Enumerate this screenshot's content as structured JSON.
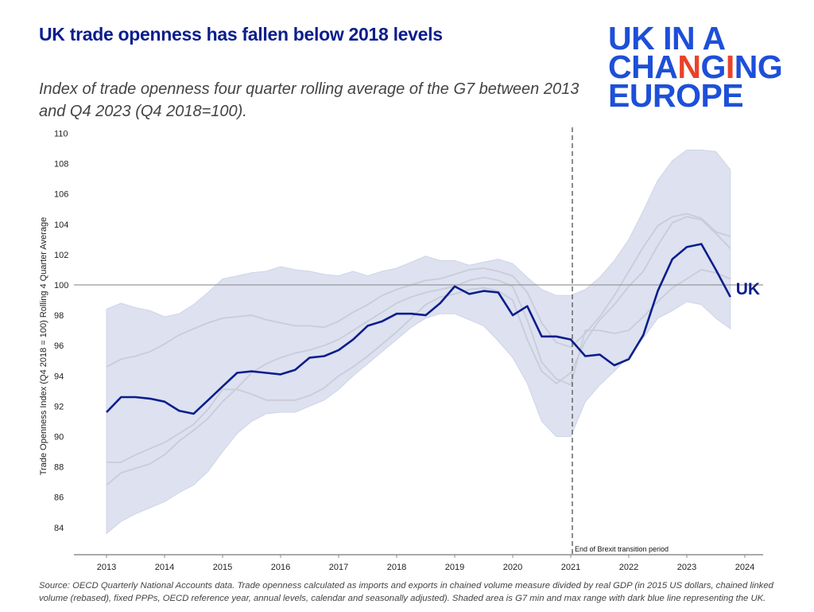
{
  "header": {
    "title": "UK trade openness has fallen below 2018 levels",
    "subtitle": "Index of trade openness four quarter rolling average of the G7 between 2013 and Q4 2023 (Q4 2018=100).",
    "logo": {
      "line1": "UK IN A",
      "line2_a": "CHA",
      "line2_b": "N",
      "line2_c": "G",
      "line2_d": "I",
      "line2_e": "NG",
      "line3": "EUROPE"
    }
  },
  "footer": {
    "source": "Source: OECD Quarterly National Accounts data. Trade openness calculated as imports and exports in chained volume measure divided by real GDP (in 2015 US dollars, chained linked volume (rebased), fixed PPPs, OECD reference year, annual levels, calendar and seasonally adjusted). Shaded area is G7 min and max range with dark blue line representing the UK."
  },
  "colors": {
    "uk": "#0b1e8c",
    "band": "#dde1f0",
    "other": "#c9ccd9",
    "ref": "#999999"
  },
  "chart_data": {
    "type": "line",
    "title": "UK trade openness has fallen below 2018 levels",
    "xlabel": "",
    "ylabel": "Trade Openness Index (Q4 2018 = 100) Rolling 4 Quarter Average",
    "xlim": [
      2012.6,
      2024.4
    ],
    "ylim": [
      83,
      110.5
    ],
    "x_ticks": [
      "2013",
      "2014",
      "2015",
      "2016",
      "2017",
      "2018",
      "2019",
      "2020",
      "2021",
      "2022",
      "2023",
      "2024"
    ],
    "y_ticks": [
      "84",
      "86",
      "88",
      "90",
      "92",
      "94",
      "96",
      "98",
      "100",
      "102",
      "104",
      "106",
      "108",
      "110"
    ],
    "x_start": 2013,
    "x_step": 0.25,
    "reference_line": {
      "y": 100
    },
    "annotation": {
      "x": 2021,
      "label": "End of Brexit transition period"
    },
    "series_label": "UK",
    "uk": [
      91.6,
      92.6,
      92.6,
      92.5,
      92.3,
      91.7,
      91.5,
      92.4,
      93.3,
      94.2,
      94.3,
      94.2,
      94.1,
      94.4,
      95.2,
      95.3,
      95.7,
      96.4,
      97.3,
      97.6,
      98.1,
      98.1,
      98.0,
      98.8,
      99.9,
      99.4,
      99.6,
      99.5,
      98.0,
      98.6,
      96.6,
      96.6,
      96.4,
      95.3,
      95.4,
      94.7,
      95.1,
      96.7,
      99.6,
      101.7,
      102.5,
      102.7,
      101.0,
      99.2
    ],
    "g7_max": [
      98.4,
      98.8,
      98.5,
      98.3,
      97.9,
      98.1,
      98.7,
      99.5,
      100.4,
      100.6,
      100.8,
      100.9,
      101.2,
      101.0,
      100.9,
      100.7,
      100.6,
      100.9,
      100.6,
      100.9,
      101.1,
      101.5,
      101.9,
      101.6,
      101.6,
      101.3,
      101.5,
      101.7,
      101.4,
      100.5,
      99.7,
      99.3,
      99.3,
      99.7,
      100.5,
      101.6,
      103.0,
      104.9,
      106.9,
      108.2,
      108.9,
      108.9,
      108.8,
      107.6
    ],
    "g7_min": [
      83.6,
      84.4,
      84.9,
      85.3,
      85.7,
      86.3,
      86.8,
      87.7,
      89.0,
      90.2,
      91.0,
      91.5,
      91.6,
      91.6,
      92.0,
      92.4,
      93.1,
      94.0,
      94.8,
      95.6,
      96.4,
      97.2,
      97.8,
      98.1,
      98.1,
      97.7,
      97.3,
      96.3,
      95.2,
      93.5,
      91.0,
      90.0,
      90.0,
      92.3,
      93.4,
      94.3,
      95.3,
      96.5,
      97.8,
      98.3,
      98.9,
      98.7,
      97.8,
      97.1
    ],
    "other_g7": [
      [
        94.6,
        95.1,
        95.3,
        95.6,
        96.1,
        96.7,
        97.1,
        97.5,
        97.8,
        97.9,
        98.0,
        97.7,
        97.5,
        97.3,
        97.3,
        97.2,
        97.6,
        98.2,
        98.7,
        99.3,
        99.7,
        100.0,
        100.3,
        100.4,
        100.7,
        101.0,
        101.1,
        100.9,
        100.6,
        99.5,
        97.5,
        96.2,
        95.9,
        96.8,
        97.9,
        99.3,
        100.9,
        102.5,
        103.9,
        104.5,
        104.7,
        104.4,
        103.5,
        103.2
      ],
      [
        88.3,
        88.3,
        88.8,
        89.2,
        89.6,
        90.2,
        90.8,
        91.8,
        93.1,
        93.1,
        92.8,
        92.4,
        92.4,
        92.4,
        92.7,
        93.2,
        94.0,
        94.6,
        95.3,
        96.1,
        96.9,
        97.8,
        98.7,
        99.2,
        99.4,
        99.7,
        99.8,
        99.6,
        99.0,
        96.4,
        94.3,
        93.5,
        94.2,
        96.3,
        97.7,
        98.7,
        99.9,
        100.9,
        102.6,
        104.1,
        104.5,
        104.3,
        103.4,
        102.4
      ],
      [
        86.8,
        87.6,
        87.9,
        88.2,
        88.8,
        89.7,
        90.4,
        91.2,
        92.3,
        93.2,
        94.2,
        94.8,
        95.2,
        95.5,
        95.7,
        96.0,
        96.4,
        97.0,
        97.6,
        98.2,
        98.8,
        99.2,
        99.5,
        99.7,
        99.9,
        100.3,
        100.5,
        100.3,
        99.9,
        97.7,
        94.9,
        93.8,
        93.4,
        97.0,
        97.0,
        96.8,
        97.0,
        97.9,
        98.9,
        99.8,
        100.4,
        101.0,
        100.8,
        100.4
      ]
    ]
  }
}
